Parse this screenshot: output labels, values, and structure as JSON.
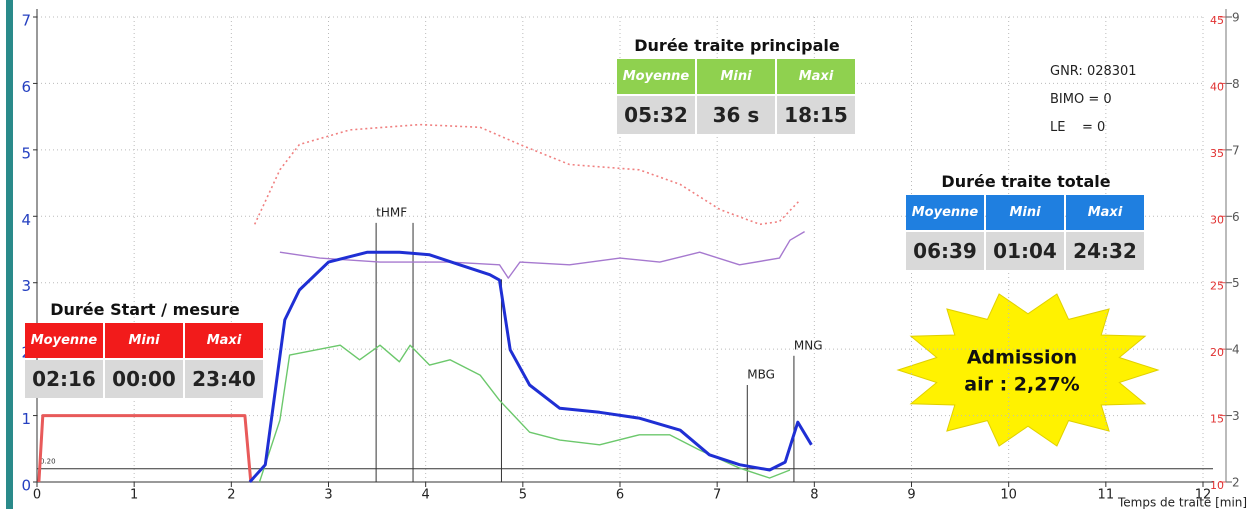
{
  "chart_data": {
    "type": "line",
    "xlabel": "Temps de traite [min]",
    "xlim": [
      0,
      12
    ],
    "xticks": [
      0,
      1,
      2,
      3,
      4,
      5,
      6,
      7,
      8,
      9,
      10,
      11,
      12
    ],
    "ylim": [
      0,
      7
    ],
    "yticks": [
      0,
      1,
      2,
      3,
      4,
      5,
      6,
      7
    ],
    "y2lim": [
      10,
      45
    ],
    "y2ticks": [
      10,
      15,
      20,
      25,
      30,
      35,
      40,
      45
    ],
    "y3lim": [
      2,
      9
    ],
    "y3ticks": [
      2,
      3,
      4,
      5,
      6,
      7,
      8,
      9
    ],
    "grid": true,
    "series": [
      {
        "color": "#e85a5a",
        "style": "solid",
        "x": [
          0.02,
          0.06,
          2.14,
          2.2
        ],
        "values": [
          0,
          1,
          1,
          0
        ]
      },
      {
        "color": "#f08080",
        "style": "dotted",
        "axis": "y2",
        "x": [
          2.24,
          2.5,
          2.7,
          3.22,
          3.94,
          4.56,
          4.97,
          5.48,
          6.2,
          6.62,
          7.03,
          7.44,
          7.64,
          7.85
        ],
        "values": [
          29.4,
          33.5,
          35.4,
          36.5,
          36.9,
          36.7,
          35.4,
          33.9,
          33.5,
          32.4,
          30.5,
          29.4,
          29.6,
          31.2
        ]
      },
      {
        "color": "#a679cf",
        "style": "solid",
        "x": [
          2.5,
          2.91,
          3.53,
          4.25,
          4.76,
          4.85,
          4.97,
          5.48,
          6.0,
          6.41,
          6.82,
          7.23,
          7.64,
          7.75,
          7.9
        ],
        "values": [
          3.46,
          3.37,
          3.31,
          3.31,
          3.27,
          3.07,
          3.31,
          3.27,
          3.37,
          3.31,
          3.46,
          3.27,
          3.37,
          3.64,
          3.77
        ]
      },
      {
        "color": "#6cc86c",
        "style": "solid",
        "x": [
          2.29,
          2.5,
          2.6,
          3.12,
          3.32,
          3.53,
          3.73,
          3.84,
          4.04,
          4.25,
          4.56,
          4.76,
          5.07,
          5.38,
          5.79,
          6.2,
          6.51,
          6.82,
          7.23,
          7.54,
          7.75
        ],
        "values": [
          0,
          0.93,
          1.91,
          2.06,
          1.84,
          2.06,
          1.81,
          2.06,
          1.76,
          1.84,
          1.61,
          1.23,
          0.75,
          0.63,
          0.56,
          0.71,
          0.71,
          0.48,
          0.21,
          0.06,
          0.18
        ]
      },
      {
        "color": "#1f2fd4",
        "style": "thick",
        "x": [
          2.19,
          2.35,
          2.55,
          2.7,
          3.0,
          3.4,
          3.73,
          4.04,
          4.35,
          4.66,
          4.76,
          4.87,
          5.07,
          5.38,
          5.79,
          6.2,
          6.62,
          6.92,
          7.23,
          7.54,
          7.7,
          7.83,
          7.97
        ],
        "values": [
          0,
          0.26,
          2.44,
          2.89,
          3.31,
          3.46,
          3.46,
          3.42,
          3.27,
          3.12,
          3.04,
          1.99,
          1.46,
          1.11,
          1.05,
          0.96,
          0.78,
          0.41,
          0.26,
          0.18,
          0.3,
          0.9,
          0.56
        ]
      }
    ],
    "threshold": {
      "y": 0.2,
      "label": "0.20"
    },
    "markers": [
      {
        "x": 3.49,
        "y_top": 3.9,
        "label": "tHMF"
      },
      {
        "x": 3.87,
        "y_top": 3.9
      },
      {
        "x": 4.78,
        "y_top": 3.05
      },
      {
        "x": 7.31,
        "y_top": 1.46,
        "label": "MBG"
      },
      {
        "x": 7.79,
        "y_top": 1.9,
        "label": "MNG"
      }
    ]
  },
  "panels": [
    {
      "title": "Durée traite principale",
      "color": "#8fd14f",
      "headers": [
        "Moyenne",
        "Mini",
        "Maxi"
      ],
      "values": [
        "05:32",
        "36 s",
        "18:15"
      ]
    },
    {
      "title": "Durée traite totale",
      "color": "#1f7fe0",
      "headers": [
        "Moyenne",
        "Mini",
        "Maxi"
      ],
      "values": [
        "06:39",
        "01:04",
        "24:32"
      ]
    },
    {
      "title": "Durée Start / mesure",
      "color": "#f21b1b",
      "headers": [
        "Moyenne",
        "Mini",
        "Maxi"
      ],
      "values": [
        "02:16",
        "00:00",
        "23:40"
      ]
    }
  ],
  "info": [
    "GNR: 028301",
    "BIMO = 0",
    "LE    = 0"
  ],
  "callout": [
    "Admission",
    "air : 2,27%"
  ]
}
